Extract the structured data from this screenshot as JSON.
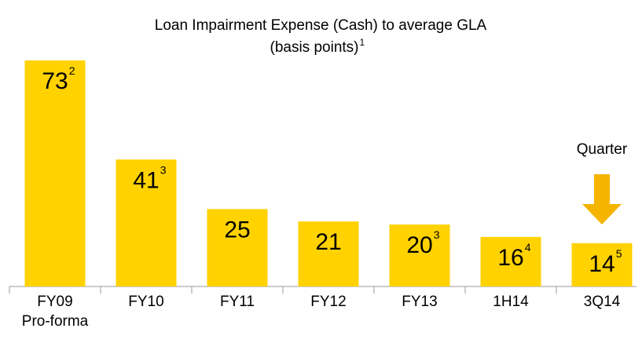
{
  "chart_data": {
    "type": "bar",
    "title": "Loan Impairment Expense (Cash) to average GLA",
    "subtitle": "(basis points)",
    "title_note": "1",
    "categories": [
      "FY09\nPro-forma",
      "FY10",
      "FY11",
      "FY12",
      "FY13",
      "1H14",
      "3Q14"
    ],
    "values": [
      73,
      41,
      25,
      21,
      20,
      16,
      14
    ],
    "value_notes": [
      "2",
      "3",
      null,
      null,
      "3",
      "4",
      "5"
    ],
    "color": "#FFD200",
    "ylim": [
      0,
      80
    ],
    "annotation": "Quarter",
    "annotation_color": "#F5B400",
    "grid": false
  }
}
